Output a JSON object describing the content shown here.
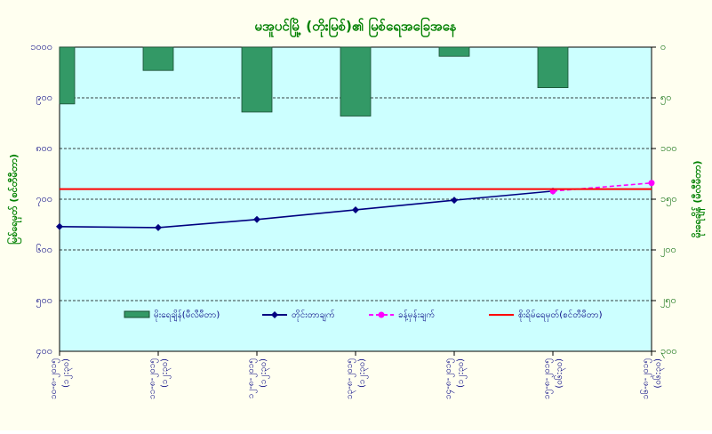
{
  "chart_data": {
    "type": "bar-line",
    "title": "မအူပင်မြို့ (တိုးမြစ်)၏ မြစ်ရေအခြေအနေ",
    "y_label": "မြစ်ရေမှတ် (စင်တီမီတာ)",
    "y2_label": "မိုးရေချိန် (မီလီမီတာ)",
    "categories": [
      "၁၀-၈-၂၀၁၅",
      "၁၁-၈-၂၀၁၅",
      "၁၂-၈-၂၀၁၅",
      "၁၃-၈-၂၀၁၅",
      "၁၄-၈-၂၀၁၅",
      "၁၅-၈-၂၀၁၅",
      "၁၆-၈-၂၀၁၅"
    ],
    "category_times": [
      "(၁၂:၃၀)",
      "(၁၂:၃၀)",
      "(၁၂:၃၀)",
      "(၁၂:၃၀)",
      "(၁၂:၃၀)",
      "(၀၆:၃၀)",
      "(၀၆:၃၀)"
    ],
    "ylim": [
      400,
      1000
    ],
    "yticks": [
      {
        "value": 400,
        "label": "၄၀၀"
      },
      {
        "value": 500,
        "label": "၅၀၀"
      },
      {
        "value": 600,
        "label": "၆၀၀"
      },
      {
        "value": 700,
        "label": "၇၀၀"
      },
      {
        "value": 800,
        "label": "၈၀၀"
      },
      {
        "value": 900,
        "label": "၉၀၀"
      },
      {
        "value": 1000,
        "label": "၁၀၀၀"
      }
    ],
    "y2lim": [
      300,
      0
    ],
    "y2ticks": [
      {
        "value": 0,
        "label": "၀"
      },
      {
        "value": 50,
        "label": "၅၀"
      },
      {
        "value": 100,
        "label": "၁၀၀"
      },
      {
        "value": 150,
        "label": "၁၅၀"
      },
      {
        "value": 200,
        "label": "၂၀၀"
      },
      {
        "value": 250,
        "label": "၂၅၀"
      },
      {
        "value": 300,
        "label": "၃၀၀"
      }
    ],
    "grid": true,
    "series": [
      {
        "name": "မိုးရေချိန်(မီလီမီတာ)",
        "kind": "bar",
        "axis": "y2",
        "color": "#339966",
        "values": [
          56,
          23,
          64,
          68,
          9,
          40,
          null
        ]
      },
      {
        "name": "တိုင်းတာချက်",
        "kind": "line",
        "color": "#000080",
        "values": [
          646,
          644,
          660,
          679,
          698,
          716,
          null
        ]
      },
      {
        "name": "ခန့်မှန်းချက်",
        "kind": "dashed",
        "color": "#ff00ff",
        "values": [
          null,
          null,
          null,
          null,
          null,
          716,
          732
        ]
      },
      {
        "name": "စိုးရိမ်ရေမှတ်(စင်တီမီတာ)",
        "kind": "hline",
        "color": "#ff0000",
        "value": 720
      }
    ]
  }
}
